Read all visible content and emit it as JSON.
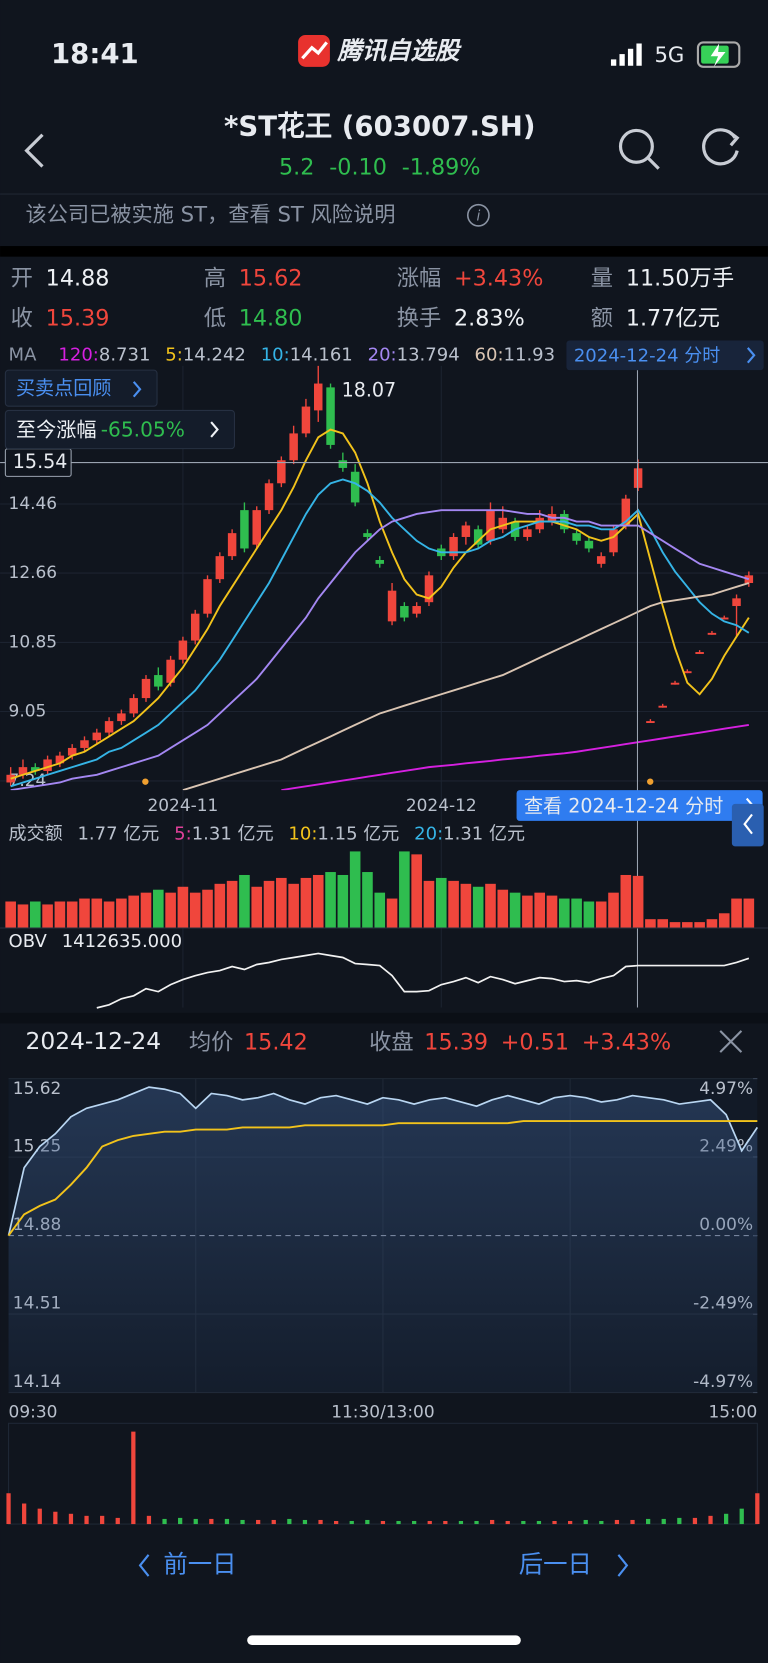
{
  "status_bar": {
    "time": "18:41",
    "app": "腾讯自选股",
    "network": "5G"
  },
  "header": {
    "title": "*ST花王 (603007.SH)",
    "price": 5.2,
    "change": "-0.10",
    "change_pct": "-1.89%"
  },
  "notice": "该公司已被实施 ST，查看 ST 风险说明",
  "stats": [
    {
      "label": "开",
      "value": 14.88
    },
    {
      "label": "高",
      "value": 15.62
    },
    {
      "label": "涨幅",
      "value": "+3.43%"
    },
    {
      "label": "量",
      "value": "11.50万手"
    },
    {
      "label": "收",
      "value": 15.39
    },
    {
      "label": "低",
      "value": 14.8,
      "value_label": "14.80"
    },
    {
      "label": "换手",
      "value": "2.83%"
    },
    {
      "label": "额",
      "value": "1.77亿元"
    }
  ],
  "ma_label": "MA",
  "date_button": "2024-12-24 分时",
  "buttons": {
    "review": "买卖点回顾",
    "since_label": "至今涨幅",
    "since_value": "-65.05%",
    "view": "查看 2024-12-24 分时"
  },
  "kline": {
    "type": "candlestick",
    "ylim": [
      7.0,
      18.06
    ],
    "yticks": [
      14.46,
      12.66,
      10.85,
      9.05,
      7.24
    ],
    "high_label": 18.07,
    "crosshair": 15.54,
    "categories": [
      null,
      null,
      null,
      null,
      null,
      null,
      null,
      null,
      null,
      null,
      null,
      null,
      null,
      null,
      "2024-11",
      null,
      null,
      null,
      null,
      null,
      null,
      null,
      null,
      null,
      null,
      null,
      null,
      null,
      null,
      null,
      null,
      null,
      null,
      null,
      null,
      "2024-12",
      null,
      null,
      null,
      null,
      null,
      null,
      null,
      null,
      null,
      null,
      null,
      null,
      null,
      null,
      null,
      null,
      null,
      null,
      null,
      null,
      null,
      null,
      null,
      null,
      null
    ],
    "ohlc": [
      [
        7.2,
        7.6,
        7.1,
        7.4
      ],
      [
        7.4,
        7.8,
        7.3,
        7.6
      ],
      [
        7.6,
        7.7,
        7.4,
        7.5
      ],
      [
        7.5,
        7.9,
        7.4,
        7.8
      ],
      [
        7.7,
        8.0,
        7.6,
        7.9
      ],
      [
        7.9,
        8.2,
        7.8,
        8.1
      ],
      [
        8.1,
        8.4,
        8.0,
        8.3
      ],
      [
        8.3,
        8.6,
        8.2,
        8.5
      ],
      [
        8.5,
        8.9,
        8.4,
        8.8
      ],
      [
        8.8,
        9.1,
        8.7,
        9.0
      ],
      [
        9.0,
        9.5,
        8.9,
        9.4
      ],
      [
        9.4,
        10.0,
        9.3,
        9.9
      ],
      [
        10.0,
        10.2,
        9.6,
        9.7
      ],
      [
        9.8,
        10.5,
        9.7,
        10.4
      ],
      [
        10.4,
        11.0,
        10.3,
        10.9
      ],
      [
        10.9,
        11.7,
        10.8,
        11.6
      ],
      [
        11.6,
        12.6,
        11.5,
        12.5
      ],
      [
        12.5,
        13.2,
        12.4,
        13.1
      ],
      [
        13.1,
        13.8,
        13.0,
        13.7
      ],
      [
        14.3,
        14.5,
        13.2,
        13.3
      ],
      [
        13.4,
        14.4,
        13.3,
        14.3
      ],
      [
        14.3,
        15.1,
        14.2,
        15.0
      ],
      [
        15.0,
        15.7,
        14.9,
        15.6
      ],
      [
        15.6,
        16.5,
        15.5,
        16.3
      ],
      [
        16.3,
        17.2,
        16.2,
        17.0
      ],
      [
        16.9,
        18.07,
        16.6,
        17.6
      ],
      [
        17.5,
        17.6,
        15.9,
        16.0
      ],
      [
        15.6,
        15.8,
        15.3,
        15.4
      ],
      [
        15.3,
        15.5,
        14.4,
        14.5
      ],
      [
        13.7,
        13.8,
        13.5,
        13.6
      ],
      [
        13.0,
        13.1,
        12.8,
        12.9
      ],
      [
        11.4,
        12.4,
        11.3,
        12.2
      ],
      [
        11.8,
        11.9,
        11.4,
        11.5
      ],
      [
        11.6,
        11.9,
        11.5,
        11.8
      ],
      [
        11.9,
        12.7,
        11.8,
        12.6
      ],
      [
        13.3,
        13.4,
        13.0,
        13.1
      ],
      [
        13.1,
        13.7,
        13.0,
        13.6
      ],
      [
        13.6,
        14.0,
        13.4,
        13.9
      ],
      [
        13.8,
        13.9,
        13.3,
        13.4
      ],
      [
        13.5,
        14.5,
        13.4,
        14.3
      ],
      [
        13.8,
        14.4,
        13.7,
        14.1
      ],
      [
        14.0,
        14.1,
        13.5,
        13.6
      ],
      [
        13.6,
        13.9,
        13.5,
        13.8
      ],
      [
        13.8,
        14.3,
        13.7,
        14.1
      ],
      [
        14.0,
        14.4,
        13.9,
        14.2
      ],
      [
        14.2,
        14.3,
        13.7,
        13.8
      ],
      [
        13.7,
        13.8,
        13.4,
        13.5
      ],
      [
        13.5,
        13.6,
        13.2,
        13.3
      ],
      [
        12.9,
        13.2,
        12.8,
        13.1
      ],
      [
        13.2,
        13.9,
        13.1,
        13.8
      ],
      [
        13.9,
        14.7,
        13.8,
        14.6
      ],
      [
        14.88,
        15.62,
        14.8,
        15.39
      ],
      [
        8.75,
        8.85,
        8.75,
        8.8
      ],
      [
        9.15,
        9.25,
        9.15,
        9.2
      ],
      [
        9.75,
        9.85,
        9.75,
        9.8
      ],
      [
        10.05,
        10.15,
        10.05,
        10.1
      ],
      [
        10.55,
        10.65,
        10.55,
        10.6
      ],
      [
        11.05,
        11.15,
        11.05,
        11.1
      ],
      [
        11.45,
        11.55,
        11.45,
        11.5
      ],
      [
        11.8,
        12.1,
        11.0,
        12.0
      ],
      [
        12.4,
        12.7,
        12.3,
        12.6
      ]
    ],
    "ma": [
      {
        "name": "120:",
        "value": 8.731,
        "color": "#d520e0",
        "values": [
          null,
          null,
          null,
          null,
          null,
          null,
          null,
          null,
          null,
          null,
          null,
          null,
          null,
          null,
          null,
          null,
          null,
          null,
          null,
          null,
          null,
          null,
          7.0,
          7.05,
          7.1,
          7.15,
          7.2,
          7.25,
          7.3,
          7.35,
          7.4,
          7.45,
          7.5,
          7.55,
          7.6,
          7.63,
          7.66,
          7.7,
          7.73,
          7.76,
          7.8,
          7.83,
          7.86,
          7.9,
          7.93,
          7.96,
          8.0,
          8.05,
          8.1,
          8.15,
          8.2,
          8.25,
          8.3,
          8.35,
          8.4,
          8.45,
          8.5,
          8.55,
          8.6,
          8.65,
          8.7
        ]
      },
      {
        "name": "5:",
        "value": 14.242,
        "color": "#f2c31b",
        "values": [
          7.3,
          7.4,
          7.5,
          7.6,
          7.7,
          7.9,
          8.0,
          8.2,
          8.4,
          8.6,
          8.8,
          9.1,
          9.4,
          9.8,
          10.2,
          10.7,
          11.2,
          11.8,
          12.3,
          12.8,
          13.3,
          13.8,
          14.3,
          14.9,
          15.6,
          16.2,
          16.4,
          16.3,
          15.8,
          15.0,
          14.0,
          13.2,
          12.5,
          12.1,
          12.0,
          12.3,
          12.8,
          13.2,
          13.5,
          13.8,
          13.9,
          14.0,
          14.0,
          14.0,
          14.0,
          13.9,
          13.8,
          13.6,
          13.5,
          13.6,
          13.9,
          14.2,
          13.0,
          11.8,
          10.7,
          9.8,
          9.5,
          9.9,
          10.5,
          11.0,
          11.5
        ]
      },
      {
        "name": "10:",
        "value": 14.161,
        "color": "#35b4e6",
        "values": [
          7.1,
          7.2,
          7.3,
          7.4,
          7.5,
          7.6,
          7.7,
          7.8,
          8.0,
          8.1,
          8.3,
          8.5,
          8.7,
          9.0,
          9.3,
          9.6,
          10.0,
          10.4,
          10.9,
          11.4,
          11.9,
          12.4,
          13.0,
          13.6,
          14.2,
          14.7,
          15.0,
          15.1,
          15.0,
          14.8,
          14.5,
          14.1,
          13.8,
          13.5,
          13.3,
          13.2,
          13.2,
          13.2,
          13.3,
          13.5,
          13.6,
          13.8,
          13.9,
          14.0,
          14.0,
          14.0,
          13.9,
          13.9,
          13.8,
          13.8,
          14.0,
          14.3,
          13.8,
          13.2,
          12.7,
          12.3,
          11.9,
          11.6,
          11.4,
          11.3,
          11.1
        ]
      },
      {
        "name": "20:",
        "value": 13.794,
        "color": "#a487f2",
        "values": [
          7.0,
          7.05,
          7.1,
          7.15,
          7.2,
          7.3,
          7.35,
          7.4,
          7.5,
          7.6,
          7.7,
          7.8,
          7.9,
          8.1,
          8.3,
          8.5,
          8.7,
          9.0,
          9.3,
          9.6,
          9.9,
          10.3,
          10.7,
          11.1,
          11.5,
          12.0,
          12.4,
          12.8,
          13.2,
          13.5,
          13.8,
          14.0,
          14.1,
          14.2,
          14.25,
          14.3,
          14.3,
          14.3,
          14.3,
          14.3,
          14.3,
          14.25,
          14.2,
          14.2,
          14.1,
          14.1,
          14.0,
          14.0,
          13.9,
          13.9,
          13.9,
          13.9,
          13.7,
          13.5,
          13.3,
          13.1,
          12.9,
          12.8,
          12.7,
          12.6,
          12.5
        ]
      },
      {
        "name": "60:",
        "value": 11.93,
        "color": "#d9c4b2",
        "values": [
          null,
          null,
          null,
          null,
          null,
          null,
          null,
          null,
          null,
          null,
          null,
          null,
          null,
          null,
          7.0,
          7.1,
          7.2,
          7.3,
          7.4,
          7.5,
          7.6,
          7.7,
          7.8,
          7.95,
          8.1,
          8.25,
          8.4,
          8.55,
          8.7,
          8.85,
          9.0,
          9.1,
          9.2,
          9.3,
          9.4,
          9.5,
          9.6,
          9.7,
          9.8,
          9.9,
          10.0,
          10.15,
          10.3,
          10.45,
          10.6,
          10.75,
          10.9,
          11.05,
          11.2,
          11.35,
          11.5,
          11.65,
          11.8,
          11.9,
          11.95,
          12.0,
          12.05,
          12.1,
          12.2,
          12.3,
          12.4
        ]
      }
    ]
  },
  "volume": {
    "label": "成交额",
    "value": "1.77 亿元",
    "ylim": [
      0,
      2.7
    ],
    "legend": [
      {
        "name": "5:",
        "value": "1.31 亿元",
        "color": "#e0409a"
      },
      {
        "name": "10:",
        "value": "1.15 亿元",
        "color": "#f2c31b"
      },
      {
        "name": "20:",
        "value": "1.31 亿元",
        "color": "#35b4e6"
      }
    ],
    "values": [
      0.9,
      0.8,
      0.9,
      0.8,
      0.9,
      0.9,
      1.0,
      1.0,
      0.9,
      1.0,
      1.1,
      1.2,
      1.3,
      1.2,
      1.4,
      1.2,
      1.3,
      1.5,
      1.6,
      1.8,
      1.4,
      1.6,
      1.7,
      1.5,
      1.7,
      1.8,
      1.9,
      1.8,
      2.6,
      1.9,
      1.2,
      1.0,
      2.6,
      2.5,
      1.6,
      1.7,
      1.6,
      1.5,
      1.4,
      1.5,
      1.3,
      1.2,
      1.1,
      1.2,
      1.1,
      1.0,
      1.0,
      0.9,
      0.9,
      1.2,
      1.8,
      1.77,
      0.3,
      0.3,
      0.2,
      0.2,
      0.2,
      0.3,
      0.5,
      1.0,
      1.0
    ]
  },
  "obv": {
    "label": "OBV",
    "value": "1412635.000",
    "ylim": [
      -4000000,
      2000000
    ],
    "values": [
      null,
      null,
      null,
      null,
      null,
      null,
      null,
      -3500000,
      -3200000,
      -2600000,
      -2300000,
      -1600000,
      -1900000,
      -1200000,
      -700000,
      -300000,
      0,
      200000,
      600000,
      300000,
      800000,
      1000000,
      1300000,
      1500000,
      1700000,
      1900000,
      1700000,
      1500000,
      900000,
      800000,
      700000,
      -300000,
      -1900000,
      -1900000,
      -1800000,
      -1200000,
      -900000,
      -500000,
      -1000000,
      -400000,
      -700000,
      -1100000,
      -800000,
      -500000,
      -600000,
      -900000,
      -800000,
      -1000000,
      -600000,
      -300000,
      600000,
      700000,
      700000,
      700000,
      700000,
      700000,
      700000,
      700000,
      700000,
      1000000,
      1412635
    ]
  },
  "intraday": {
    "type": "line",
    "date": "2024-12-24",
    "avg_label": "均价",
    "avg": 15.42,
    "close_label": "收盘",
    "close": 15.39,
    "change": "+0.51",
    "change_pct": "+3.43%",
    "ylim": [
      14.14,
      15.62
    ],
    "yticks": [
      15.62,
      15.25,
      14.88,
      14.51,
      14.14
    ],
    "y2lim": [
      -4.97,
      4.97
    ],
    "y2ticks": [
      {
        "value": 4.97,
        "label": "4.97%"
      },
      {
        "value": 2.49,
        "label": "2.49%"
      },
      {
        "value": 0,
        "label": "0.00%"
      },
      {
        "value": -2.49,
        "label": "-2.49%"
      },
      {
        "value": -4.97,
        "label": "-4.97%"
      }
    ],
    "time_labels": [
      "09:30",
      "11:30/13:00",
      "15:00"
    ],
    "price": [
      14.88,
      15.2,
      15.3,
      15.36,
      15.44,
      15.48,
      15.5,
      15.52,
      15.55,
      15.58,
      15.57,
      15.55,
      15.48,
      15.55,
      15.54,
      15.52,
      15.53,
      15.55,
      15.52,
      15.5,
      15.53,
      15.54,
      15.52,
      15.5,
      15.53,
      15.52,
      15.5,
      15.52,
      15.53,
      15.51,
      15.49,
      15.52,
      15.54,
      15.52,
      15.5,
      15.53,
      15.54,
      15.53,
      15.51,
      15.52,
      15.54,
      15.53,
      15.52,
      15.5,
      15.51,
      15.52,
      15.45,
      15.28,
      15.39
    ],
    "avg_line": [
      14.88,
      14.98,
      15.02,
      15.05,
      15.12,
      15.2,
      15.3,
      15.33,
      15.35,
      15.36,
      15.37,
      15.37,
      15.38,
      15.38,
      15.38,
      15.39,
      15.39,
      15.39,
      15.39,
      15.4,
      15.4,
      15.4,
      15.4,
      15.4,
      15.4,
      15.41,
      15.41,
      15.41,
      15.41,
      15.41,
      15.41,
      15.41,
      15.41,
      15.42,
      15.42,
      15.42,
      15.42,
      15.42,
      15.42,
      15.42,
      15.42,
      15.42,
      15.42,
      15.42,
      15.42,
      15.42,
      15.42,
      15.42,
      15.42
    ],
    "vol_ylim": [
      0,
      95
    ],
    "volume": [
      30,
      20,
      15,
      12,
      10,
      8,
      8,
      6,
      90,
      8,
      5,
      6,
      5,
      5,
      5,
      4,
      4,
      4,
      5,
      4,
      4,
      3,
      3,
      4,
      3,
      3,
      3,
      3,
      3,
      3,
      3,
      4,
      3,
      3,
      3,
      3,
      3,
      4,
      3,
      4,
      4,
      5,
      5,
      6,
      6,
      8,
      10,
      15,
      30
    ]
  },
  "footer": {
    "prev": "前一日",
    "next": "后一日"
  }
}
